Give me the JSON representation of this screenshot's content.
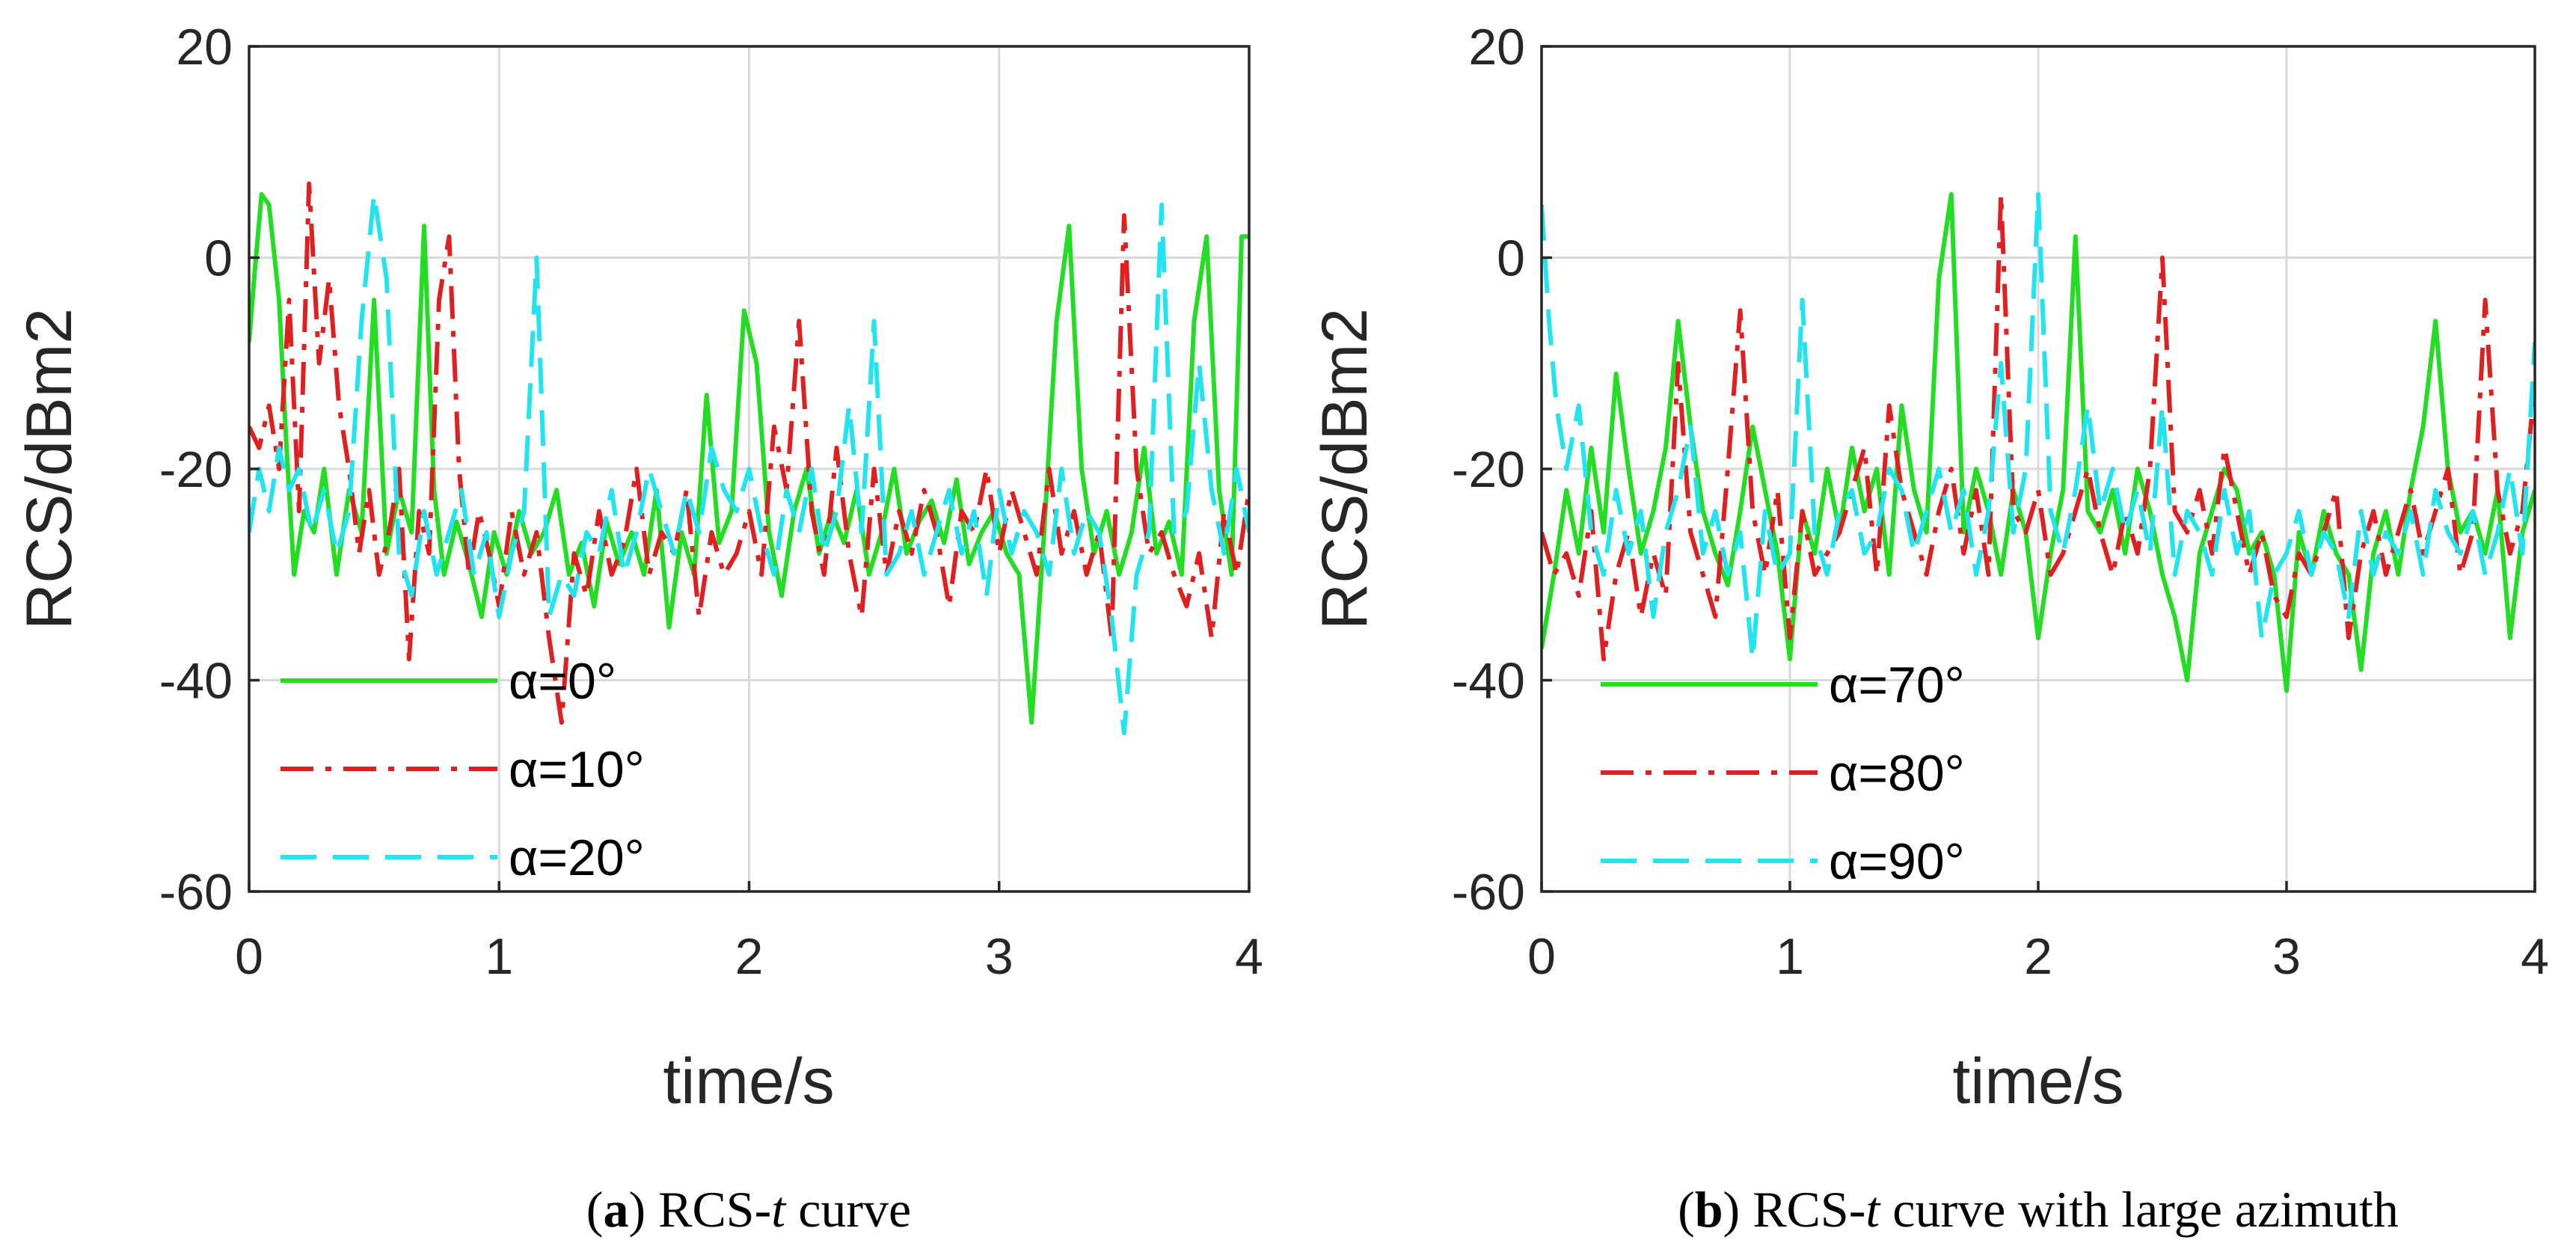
{
  "chart_data": [
    {
      "id": "a",
      "type": "line",
      "panel_label": "a",
      "caption_prefix": "RCS-",
      "caption_italic": "t",
      "caption_suffix": " curve",
      "xlabel": "time/s",
      "ylabel": "RCS/dBm2",
      "xlim": [
        0,
        4
      ],
      "ylim": [
        -60,
        20
      ],
      "xticks": [
        0,
        1,
        2,
        3,
        4
      ],
      "yticks": [
        20,
        0,
        -20,
        -40,
        -60
      ],
      "grid": true,
      "legend_position": "bottom-left",
      "series": [
        {
          "name": "α=0°",
          "color": "#22dd22",
          "dash": "solid",
          "x": [
            0.0,
            0.02,
            0.05,
            0.08,
            0.12,
            0.15,
            0.18,
            0.22,
            0.26,
            0.3,
            0.35,
            0.4,
            0.45,
            0.5,
            0.55,
            0.6,
            0.65,
            0.7,
            0.74,
            0.78,
            0.83,
            0.88,
            0.93,
            0.98,
            1.03,
            1.08,
            1.13,
            1.18,
            1.23,
            1.28,
            1.33,
            1.38,
            1.43,
            1.48,
            1.53,
            1.58,
            1.63,
            1.68,
            1.73,
            1.78,
            1.83,
            1.88,
            1.93,
            1.98,
            2.03,
            2.08,
            2.13,
            2.18,
            2.23,
            2.28,
            2.33,
            2.38,
            2.43,
            2.48,
            2.53,
            2.58,
            2.63,
            2.68,
            2.73,
            2.78,
            2.83,
            2.88,
            2.93,
            2.98,
            3.03,
            3.08,
            3.13,
            3.18,
            3.23,
            3.28,
            3.33,
            3.38,
            3.43,
            3.48,
            3.53,
            3.58,
            3.63,
            3.68,
            3.73,
            3.78,
            3.83,
            3.88,
            3.93,
            3.97,
            4.0
          ],
          "values": [
            -8,
            -2,
            6,
            5,
            -4,
            -18,
            -30,
            -24,
            -26,
            -20,
            -30,
            -22,
            -26,
            -4,
            -28,
            -22,
            -26,
            3,
            -22,
            -30,
            -25,
            -29,
            -34,
            -26,
            -30,
            -24,
            -28,
            -26,
            -22,
            -30,
            -27,
            -33,
            -25,
            -29,
            -26,
            -30,
            -22,
            -35,
            -26,
            -30,
            -13,
            -27,
            -24,
            -5,
            -10,
            -26,
            -32,
            -24,
            -20,
            -28,
            -24,
            -27,
            -22,
            -30,
            -26,
            -20,
            -28,
            -25,
            -23,
            -27,
            -21,
            -29,
            -26,
            -24,
            -28,
            -30,
            -44,
            -26,
            -6,
            3,
            -20,
            -28,
            -24,
            -30,
            -26,
            -18,
            -28,
            -25,
            -30,
            -6,
            2,
            -22,
            -30,
            2,
            2
          ]
        },
        {
          "name": "α=10°",
          "color": "#e02020",
          "dash": "dashdot",
          "x": [
            0.0,
            0.04,
            0.08,
            0.12,
            0.16,
            0.2,
            0.24,
            0.28,
            0.32,
            0.36,
            0.4,
            0.44,
            0.48,
            0.52,
            0.56,
            0.6,
            0.64,
            0.68,
            0.72,
            0.76,
            0.8,
            0.84,
            0.88,
            0.92,
            0.96,
            1.0,
            1.05,
            1.1,
            1.15,
            1.2,
            1.25,
            1.3,
            1.35,
            1.4,
            1.45,
            1.5,
            1.55,
            1.6,
            1.65,
            1.7,
            1.75,
            1.8,
            1.85,
            1.9,
            1.95,
            2.0,
            2.05,
            2.1,
            2.15,
            2.2,
            2.25,
            2.3,
            2.35,
            2.4,
            2.45,
            2.5,
            2.55,
            2.6,
            2.65,
            2.7,
            2.75,
            2.8,
            2.85,
            2.9,
            2.95,
            3.0,
            3.05,
            3.1,
            3.15,
            3.2,
            3.25,
            3.3,
            3.35,
            3.4,
            3.45,
            3.5,
            3.55,
            3.6,
            3.65,
            3.7,
            3.75,
            3.8,
            3.85,
            3.9,
            3.95,
            4.0
          ],
          "values": [
            -16,
            -18,
            -14,
            -20,
            -4,
            -24,
            7,
            -10,
            -2,
            -14,
            -20,
            -28,
            -22,
            -30,
            -26,
            -20,
            -38,
            -24,
            -28,
            -4,
            2,
            -20,
            -30,
            -24,
            -28,
            -33,
            -24,
            -30,
            -26,
            -36,
            -44,
            -28,
            -32,
            -24,
            -30,
            -27,
            -20,
            -30,
            -26,
            -28,
            -22,
            -34,
            -26,
            -30,
            -28,
            -24,
            -30,
            -16,
            -22,
            -6,
            -24,
            -30,
            -18,
            -28,
            -34,
            -20,
            -30,
            -24,
            -28,
            -22,
            -26,
            -33,
            -24,
            -26,
            -20,
            -28,
            -22,
            -26,
            -30,
            -20,
            -28,
            -24,
            -30,
            -26,
            -36,
            4,
            -20,
            -28,
            -26,
            -30,
            -33,
            -28,
            -36,
            -24,
            -30,
            -22
          ]
        },
        {
          "name": "α=20°",
          "color": "#22e4f0",
          "dash": "dashed",
          "x": [
            0.0,
            0.04,
            0.08,
            0.12,
            0.16,
            0.2,
            0.25,
            0.3,
            0.35,
            0.4,
            0.45,
            0.5,
            0.55,
            0.6,
            0.65,
            0.7,
            0.75,
            0.8,
            0.85,
            0.9,
            0.95,
            1.0,
            1.05,
            1.1,
            1.15,
            1.2,
            1.25,
            1.3,
            1.35,
            1.4,
            1.45,
            1.5,
            1.55,
            1.6,
            1.65,
            1.7,
            1.75,
            1.8,
            1.85,
            1.9,
            1.95,
            2.0,
            2.05,
            2.1,
            2.15,
            2.2,
            2.25,
            2.3,
            2.35,
            2.4,
            2.45,
            2.5,
            2.55,
            2.6,
            2.65,
            2.7,
            2.75,
            2.8,
            2.85,
            2.9,
            2.95,
            3.0,
            3.05,
            3.1,
            3.15,
            3.2,
            3.25,
            3.3,
            3.35,
            3.4,
            3.45,
            3.5,
            3.55,
            3.6,
            3.65,
            3.7,
            3.75,
            3.8,
            3.85,
            3.9,
            3.95,
            4.0
          ],
          "values": [
            -26,
            -20,
            -24,
            -18,
            -22,
            -20,
            -26,
            -22,
            -28,
            -24,
            -6,
            6,
            -2,
            -28,
            -32,
            -24,
            -30,
            -26,
            -22,
            -30,
            -26,
            -34,
            -28,
            -24,
            0,
            -34,
            -30,
            -32,
            -26,
            -28,
            -22,
            -30,
            -26,
            -20,
            -24,
            -28,
            -22,
            -26,
            -18,
            -22,
            -24,
            -20,
            -26,
            -30,
            -22,
            -26,
            -20,
            -28,
            -24,
            -14,
            -26,
            -6,
            -30,
            -28,
            -24,
            -30,
            -26,
            -22,
            -28,
            -24,
            -32,
            -22,
            -28,
            -24,
            -26,
            -30,
            -20,
            -28,
            -24,
            -26,
            -34,
            -45,
            -30,
            -26,
            5,
            -26,
            -24,
            -10,
            -22,
            -28,
            -20,
            -26
          ]
        }
      ]
    },
    {
      "id": "b",
      "type": "line",
      "panel_label": "b",
      "caption_prefix": "RCS-",
      "caption_italic": "t",
      "caption_suffix": " curve with large azimuth",
      "xlabel": "time/s",
      "ylabel": "RCS/dBm2",
      "xlim": [
        0,
        4
      ],
      "ylim": [
        -60,
        20
      ],
      "xticks": [
        0,
        1,
        2,
        3,
        4
      ],
      "yticks": [
        20,
        0,
        -20,
        -40,
        -60
      ],
      "grid": true,
      "legend_position": "bottom-left",
      "series": [
        {
          "name": "α=70°",
          "color": "#22dd22",
          "dash": "solid",
          "x": [
            0.0,
            0.05,
            0.1,
            0.15,
            0.2,
            0.25,
            0.3,
            0.35,
            0.4,
            0.45,
            0.5,
            0.55,
            0.6,
            0.65,
            0.7,
            0.75,
            0.8,
            0.85,
            0.9,
            0.95,
            1.0,
            1.05,
            1.1,
            1.15,
            1.2,
            1.25,
            1.3,
            1.35,
            1.4,
            1.45,
            1.5,
            1.55,
            1.6,
            1.65,
            1.7,
            1.75,
            1.8,
            1.85,
            1.9,
            1.95,
            2.0,
            2.05,
            2.1,
            2.15,
            2.2,
            2.25,
            2.3,
            2.35,
            2.4,
            2.45,
            2.5,
            2.55,
            2.6,
            2.65,
            2.7,
            2.75,
            2.8,
            2.85,
            2.9,
            2.95,
            3.0,
            3.05,
            3.1,
            3.15,
            3.2,
            3.25,
            3.3,
            3.35,
            3.4,
            3.45,
            3.5,
            3.55,
            3.6,
            3.65,
            3.7,
            3.75,
            3.8,
            3.85,
            3.9,
            3.95,
            4.0
          ],
          "values": [
            -37,
            -30,
            -22,
            -28,
            -18,
            -26,
            -11,
            -20,
            -28,
            -24,
            -18,
            -6,
            -16,
            -24,
            -28,
            -31,
            -24,
            -16,
            -22,
            -28,
            -38,
            -24,
            -28,
            -20,
            -26,
            -18,
            -24,
            -20,
            -30,
            -14,
            -22,
            -26,
            -2,
            6,
            -26,
            -20,
            -24,
            -30,
            -22,
            -26,
            -36,
            -28,
            -22,
            2,
            -24,
            -26,
            -22,
            -28,
            -20,
            -24,
            -30,
            -34,
            -40,
            -28,
            -24,
            -20,
            -22,
            -28,
            -26,
            -30,
            -41,
            -26,
            -30,
            -24,
            -28,
            -30,
            -39,
            -28,
            -24,
            -30,
            -22,
            -16,
            -6,
            -20,
            -26,
            -24,
            -28,
            -22,
            -36,
            -26,
            -22
          ]
        },
        {
          "name": "α=80°",
          "color": "#e02020",
          "dash": "dashdot",
          "x": [
            0.0,
            0.05,
            0.1,
            0.15,
            0.2,
            0.25,
            0.3,
            0.35,
            0.4,
            0.45,
            0.5,
            0.55,
            0.6,
            0.65,
            0.7,
            0.75,
            0.8,
            0.85,
            0.9,
            0.95,
            1.0,
            1.05,
            1.1,
            1.15,
            1.2,
            1.25,
            1.3,
            1.35,
            1.4,
            1.45,
            1.5,
            1.55,
            1.6,
            1.65,
            1.7,
            1.75,
            1.8,
            1.85,
            1.9,
            1.95,
            2.0,
            2.05,
            2.1,
            2.15,
            2.2,
            2.25,
            2.3,
            2.35,
            2.4,
            2.45,
            2.5,
            2.55,
            2.6,
            2.65,
            2.7,
            2.75,
            2.8,
            2.85,
            2.9,
            2.95,
            3.0,
            3.05,
            3.1,
            3.15,
            3.2,
            3.25,
            3.3,
            3.35,
            3.4,
            3.45,
            3.5,
            3.55,
            3.6,
            3.65,
            3.7,
            3.75,
            3.8,
            3.85,
            3.9,
            3.95,
            4.0
          ],
          "values": [
            -26,
            -30,
            -28,
            -32,
            -24,
            -38,
            -30,
            -26,
            -34,
            -28,
            -32,
            -10,
            -26,
            -30,
            -34,
            -20,
            -5,
            -24,
            -30,
            -22,
            -36,
            -24,
            -30,
            -28,
            -26,
            -22,
            -18,
            -30,
            -14,
            -22,
            -26,
            -30,
            -24,
            -20,
            -28,
            -22,
            -30,
            6,
            -24,
            -26,
            -22,
            -30,
            -28,
            -24,
            -20,
            -26,
            -30,
            -24,
            -28,
            -20,
            0,
            -24,
            -26,
            -22,
            -28,
            -18,
            -24,
            -30,
            -26,
            -32,
            -34,
            -28,
            -30,
            -26,
            -22,
            -36,
            -28,
            -24,
            -30,
            -26,
            -22,
            -28,
            -24,
            -20,
            -30,
            -26,
            -4,
            -22,
            -28,
            -24,
            -12
          ]
        },
        {
          "name": "α=90°",
          "color": "#22e4f0",
          "dash": "dashed",
          "x": [
            0.0,
            0.03,
            0.06,
            0.1,
            0.15,
            0.2,
            0.25,
            0.3,
            0.35,
            0.4,
            0.45,
            0.5,
            0.55,
            0.6,
            0.65,
            0.7,
            0.75,
            0.8,
            0.85,
            0.9,
            0.95,
            1.0,
            1.05,
            1.1,
            1.15,
            1.2,
            1.25,
            1.3,
            1.35,
            1.4,
            1.45,
            1.5,
            1.55,
            1.6,
            1.65,
            1.7,
            1.75,
            1.8,
            1.85,
            1.9,
            1.95,
            2.0,
            2.05,
            2.1,
            2.15,
            2.2,
            2.25,
            2.3,
            2.35,
            2.4,
            2.45,
            2.5,
            2.55,
            2.6,
            2.65,
            2.7,
            2.75,
            2.8,
            2.85,
            2.9,
            2.95,
            3.0,
            3.05,
            3.1,
            3.15,
            3.2,
            3.25,
            3.3,
            3.35,
            3.4,
            3.45,
            3.5,
            3.55,
            3.6,
            3.65,
            3.7,
            3.75,
            3.8,
            3.85,
            3.9,
            3.95,
            4.0
          ],
          "values": [
            5,
            -6,
            -14,
            -20,
            -14,
            -26,
            -30,
            -22,
            -28,
            -24,
            -34,
            -26,
            -22,
            -16,
            -28,
            -24,
            -30,
            -26,
            -38,
            -24,
            -30,
            -28,
            -4,
            -26,
            -30,
            -24,
            -22,
            -28,
            -26,
            -20,
            -22,
            -28,
            -24,
            -20,
            -26,
            -22,
            -30,
            -24,
            -10,
            -26,
            -20,
            6,
            -24,
            -28,
            -22,
            -14,
            -24,
            -20,
            -26,
            -22,
            -28,
            -14,
            -30,
            -24,
            -26,
            -30,
            -22,
            -28,
            -24,
            -36,
            -30,
            -28,
            -24,
            -30,
            -26,
            -28,
            -34,
            -24,
            -30,
            -26,
            -28,
            -24,
            -30,
            -22,
            -26,
            -28,
            -24,
            -30,
            -26,
            -20,
            -28,
            -8
          ]
        }
      ]
    }
  ]
}
